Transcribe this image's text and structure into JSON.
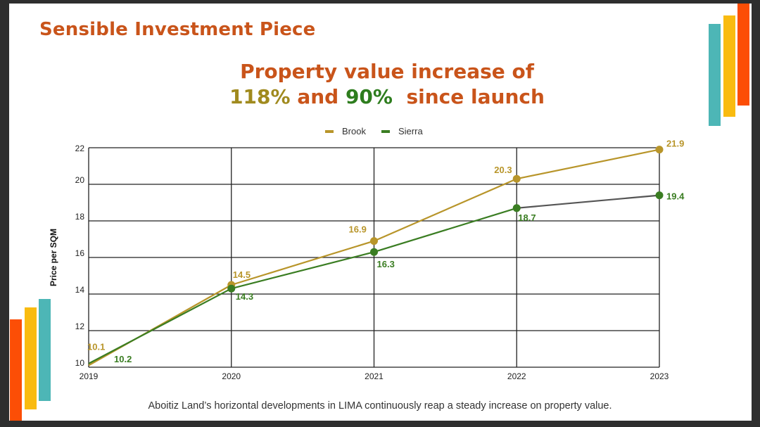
{
  "slide": {
    "title": "Sensible Investment Piece",
    "headline": {
      "line1": "Property value increase of",
      "pct1": "118%",
      "and": "and",
      "pct2": "90%",
      "suffix": "since launch"
    },
    "caption": "Aboitiz Land’s horizontal developments in LIMA continuously reap a steady increase on property value.",
    "colors": {
      "title": "#c9541a",
      "pct1": "#a08a1e",
      "pct2": "#2e7d1e",
      "accent_orange": "#fc4e06",
      "accent_yellow": "#f9bb10",
      "accent_teal": "#4db6b6"
    }
  },
  "chart_data": {
    "type": "line",
    "title": "",
    "xlabel": "",
    "ylabel": "Price per SQM",
    "categories": [
      "2019",
      "2020",
      "2021",
      "2022",
      "2023"
    ],
    "ylim": [
      10,
      22
    ],
    "yticks": [
      10,
      12,
      14,
      16,
      18,
      20,
      22
    ],
    "grid": true,
    "legend": "top-center",
    "series": [
      {
        "name": "Brook",
        "color": "#b8952a",
        "values": [
          10.1,
          14.5,
          16.9,
          20.3,
          21.9
        ],
        "labels": [
          "10.1",
          "14.5",
          "16.9",
          "20.3",
          "21.9"
        ]
      },
      {
        "name": "Sierra",
        "color": "#3a7d22",
        "values": [
          10.2,
          14.3,
          16.3,
          18.7,
          19.4
        ],
        "labels": [
          "10.2",
          "14.3",
          "16.3",
          "18.7",
          "19.4"
        ]
      }
    ]
  }
}
